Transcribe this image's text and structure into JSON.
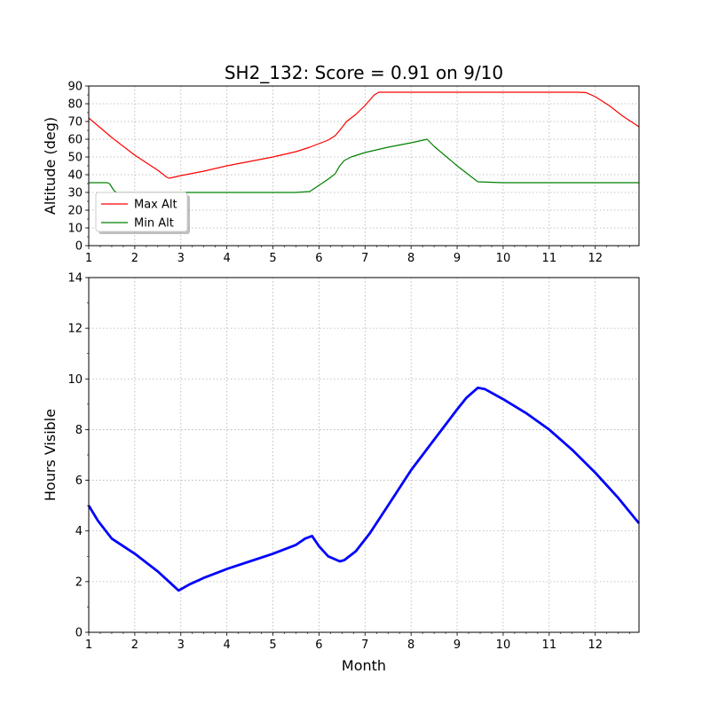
{
  "chart_data": [
    {
      "type": "line",
      "title": "SH2_132: Score = 0.91 on 9/10",
      "xlabel": "",
      "ylabel": "Altitude (deg)",
      "xlim": [
        1,
        12.95
      ],
      "ylim": [
        0,
        90
      ],
      "xticks": [
        1,
        2,
        3,
        4,
        5,
        6,
        7,
        8,
        9,
        10,
        11,
        12
      ],
      "yticks": [
        0,
        10,
        20,
        30,
        40,
        50,
        60,
        70,
        80,
        90
      ],
      "grid": true,
      "legend_position": "lower-left",
      "series": [
        {
          "name": "Max Alt",
          "color": "#ff0000",
          "x": [
            1,
            1.5,
            2,
            2.5,
            2.7,
            2.75,
            3,
            3.5,
            4,
            4.5,
            5,
            5.5,
            5.8,
            6.0,
            6.2,
            6.35,
            6.45,
            6.6,
            6.8,
            7.0,
            7.1,
            7.2,
            7.3,
            8,
            9,
            10,
            11,
            11.6,
            11.8,
            12.0,
            12.3,
            12.6,
            12.95
          ],
          "y": [
            72,
            61,
            51,
            42.5,
            38.5,
            38,
            39.5,
            42,
            45,
            47.5,
            50,
            53,
            55.5,
            57.5,
            59.5,
            62,
            65,
            70,
            74,
            79,
            82,
            85,
            86.5,
            86.5,
            86.5,
            86.5,
            86.5,
            86.5,
            86.3,
            84,
            79,
            73,
            67
          ]
        },
        {
          "name": "Min Alt",
          "color": "#008000",
          "x": [
            1,
            1.2,
            1.4,
            1.45,
            1.5,
            1.55,
            1.6,
            2,
            3,
            4,
            5,
            5.5,
            5.8,
            6.0,
            6.2,
            6.35,
            6.45,
            6.55,
            6.7,
            7,
            7.5,
            8,
            8.35,
            8.5,
            9,
            9.3,
            9.45,
            10,
            11,
            12,
            12.95
          ],
          "y": [
            35.5,
            35.5,
            35.5,
            35,
            33,
            31,
            30,
            30,
            30,
            30,
            30,
            30,
            30.5,
            34,
            37.5,
            40.5,
            45,
            48,
            50,
            52.5,
            55.5,
            58,
            60,
            56,
            45,
            39,
            36,
            35.5,
            35.5,
            35.5,
            35.5
          ]
        }
      ]
    },
    {
      "type": "line",
      "title": "",
      "xlabel": "Month",
      "ylabel": "Hours Visible",
      "xlim": [
        1,
        12.95
      ],
      "ylim": [
        0,
        14
      ],
      "xticks": [
        1,
        2,
        3,
        4,
        5,
        6,
        7,
        8,
        9,
        10,
        11,
        12
      ],
      "yticks": [
        0,
        2,
        4,
        6,
        8,
        10,
        12,
        14
      ],
      "grid": true,
      "series": [
        {
          "color": "#0000ff",
          "x": [
            1,
            1.2,
            1.5,
            2,
            2.5,
            2.8,
            2.95,
            3.2,
            3.5,
            4,
            4.5,
            5,
            5.5,
            5.7,
            5.85,
            6.0,
            6.2,
            6.45,
            6.55,
            6.8,
            7.1,
            7.5,
            8,
            8.5,
            9,
            9.2,
            9.45,
            9.6,
            10,
            10.5,
            11,
            11.5,
            12,
            12.5,
            12.95
          ],
          "y": [
            5,
            4.4,
            3.7,
            3.1,
            2.4,
            1.9,
            1.65,
            1.9,
            2.15,
            2.5,
            2.8,
            3.1,
            3.45,
            3.7,
            3.8,
            3.4,
            3.0,
            2.8,
            2.85,
            3.2,
            3.9,
            5.0,
            6.4,
            7.6,
            8.8,
            9.25,
            9.65,
            9.6,
            9.2,
            8.65,
            8.0,
            7.2,
            6.3,
            5.3,
            4.3
          ]
        }
      ]
    }
  ]
}
